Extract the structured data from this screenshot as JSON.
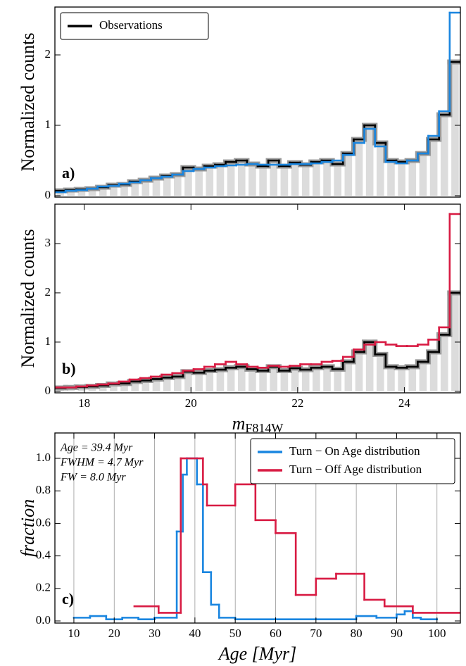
{
  "chart_data": [
    {
      "type": "histogram",
      "panel_label": "a)",
      "ylabel": "Normalized counts",
      "xlim": [
        17.45,
        25.05
      ],
      "ylim": [
        -0.02,
        2.68
      ],
      "yticks": [
        0,
        1,
        2
      ],
      "legend": "upper left",
      "bins": [
        17.45,
        17.65,
        17.85,
        18.05,
        18.25,
        18.45,
        18.65,
        18.85,
        19.05,
        19.25,
        19.45,
        19.65,
        19.85,
        20.05,
        20.25,
        20.45,
        20.65,
        20.85,
        21.05,
        21.25,
        21.45,
        21.65,
        21.85,
        22.05,
        22.25,
        22.45,
        22.65,
        22.85,
        23.05,
        23.25,
        23.45,
        23.65,
        23.85,
        24.05,
        24.25,
        24.45,
        24.65,
        24.85,
        25.05
      ],
      "series": [
        {
          "name": "Observations",
          "color": "#000000",
          "fill": "#dcdcdc",
          "band_color": "#9a9a9a",
          "values": [
            0.07,
            0.08,
            0.09,
            0.1,
            0.12,
            0.15,
            0.16,
            0.2,
            0.22,
            0.25,
            0.28,
            0.3,
            0.4,
            0.38,
            0.42,
            0.44,
            0.48,
            0.5,
            0.45,
            0.42,
            0.5,
            0.42,
            0.47,
            0.44,
            0.48,
            0.5,
            0.45,
            0.6,
            0.8,
            1.0,
            0.75,
            0.5,
            0.48,
            0.5,
            0.6,
            0.8,
            1.15,
            1.9
          ]
        },
        {
          "color": "#1a86e0",
          "values": [
            0.05,
            0.07,
            0.08,
            0.1,
            0.13,
            0.14,
            0.17,
            0.19,
            0.22,
            0.25,
            0.27,
            0.3,
            0.35,
            0.38,
            0.4,
            0.42,
            0.43,
            0.44,
            0.45,
            0.44,
            0.44,
            0.44,
            0.45,
            0.45,
            0.46,
            0.48,
            0.5,
            0.58,
            0.75,
            0.95,
            0.7,
            0.48,
            0.46,
            0.5,
            0.6,
            0.85,
            1.2,
            2.6
          ]
        }
      ]
    },
    {
      "type": "histogram",
      "panel_label": "b)",
      "ylabel": "Normalized counts",
      "xlabel": "m",
      "xlabel_sub": "F814W",
      "xlim": [
        17.45,
        25.05
      ],
      "ylim": [
        -0.03,
        3.8
      ],
      "yticks": [
        0,
        1,
        2,
        3
      ],
      "xticks": [
        18,
        20,
        22,
        24
      ],
      "bins": [
        17.45,
        17.65,
        17.85,
        18.05,
        18.25,
        18.45,
        18.65,
        18.85,
        19.05,
        19.25,
        19.45,
        19.65,
        19.85,
        20.05,
        20.25,
        20.45,
        20.65,
        20.85,
        21.05,
        21.25,
        21.45,
        21.65,
        21.85,
        22.05,
        22.25,
        22.45,
        22.65,
        22.85,
        23.05,
        23.25,
        23.45,
        23.65,
        23.85,
        24.05,
        24.25,
        24.45,
        24.65,
        24.85,
        25.05
      ],
      "series": [
        {
          "color": "#000000",
          "fill": "#dcdcdc",
          "band_color": "#9a9a9a",
          "values": [
            0.07,
            0.08,
            0.09,
            0.1,
            0.12,
            0.15,
            0.16,
            0.2,
            0.22,
            0.25,
            0.28,
            0.3,
            0.4,
            0.38,
            0.42,
            0.44,
            0.48,
            0.5,
            0.45,
            0.42,
            0.5,
            0.42,
            0.47,
            0.44,
            0.48,
            0.5,
            0.45,
            0.6,
            0.8,
            1.0,
            0.75,
            0.5,
            0.48,
            0.5,
            0.6,
            0.8,
            1.15,
            2.0
          ]
        },
        {
          "color": "#d81b43",
          "values": [
            0.08,
            0.08,
            0.1,
            0.12,
            0.14,
            0.16,
            0.2,
            0.24,
            0.27,
            0.3,
            0.34,
            0.37,
            0.42,
            0.45,
            0.5,
            0.55,
            0.6,
            0.55,
            0.5,
            0.48,
            0.52,
            0.5,
            0.52,
            0.55,
            0.55,
            0.6,
            0.62,
            0.7,
            0.85,
            0.95,
            1.0,
            0.95,
            0.92,
            0.92,
            0.95,
            1.05,
            1.3,
            3.6
          ]
        }
      ]
    },
    {
      "type": "histogram",
      "panel_label": "c)",
      "ylabel": "fraction",
      "xlabel": "Age [Myr]",
      "xlim": [
        5.3,
        105.8
      ],
      "ylim": [
        -0.013,
        1.156
      ],
      "grid": true,
      "legend": "upper right",
      "xticks": [
        10,
        20,
        30,
        40,
        50,
        60,
        70,
        80,
        90,
        100
      ],
      "yticks": [
        {
          "value": 0,
          "label": "0.0"
        },
        0.2,
        0.4,
        0.6,
        0.8,
        {
          "value": 1,
          "label": "1.0"
        }
      ],
      "annotations": [
        "Age = 39.4 Myr",
        "FWHM = 4.7 Myr",
        "FW = 8.0 Myr"
      ],
      "series": [
        {
          "name": "Turn − On Age distribution",
          "color": "#1a86e0",
          "bins": [
            10,
            14,
            18,
            22,
            26,
            30,
            35.5,
            37,
            38,
            40.5,
            42,
            44,
            46,
            50,
            60,
            70,
            80,
            85,
            90,
            92,
            94,
            96,
            100
          ],
          "values": [
            0.02,
            0.03,
            0.01,
            0.02,
            0.01,
            0.02,
            0.55,
            0.9,
            1.0,
            0.84,
            0.3,
            0.1,
            0.02,
            0.01,
            0.01,
            0.01,
            0.03,
            0.02,
            0.04,
            0.06,
            0.02,
            0.01
          ]
        },
        {
          "name": "Turn − Off Age distribution",
          "color": "#d81b43",
          "bins": [
            25,
            31,
            36.5,
            42,
            43,
            50,
            55,
            60,
            65,
            70,
            75,
            82,
            87,
            94,
            105.8
          ],
          "values": [
            0.09,
            0.05,
            1.0,
            0.84,
            0.71,
            0.84,
            0.62,
            0.54,
            0.16,
            0.26,
            0.29,
            0.13,
            0.09,
            0.05
          ]
        }
      ]
    }
  ]
}
